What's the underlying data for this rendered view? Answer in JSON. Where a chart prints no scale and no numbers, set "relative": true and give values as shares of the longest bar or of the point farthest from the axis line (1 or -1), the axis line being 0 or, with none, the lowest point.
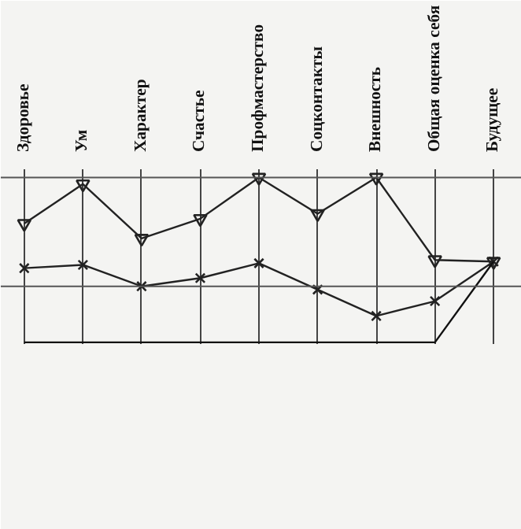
{
  "chart_data": {
    "type": "line",
    "relative": true,
    "categories": [
      "Здоровье",
      "Ум",
      "Характер",
      "Счастье",
      "Профмастерство",
      "Соцконтакты",
      "Внешность",
      "Общая оценка себя",
      "Будущее"
    ],
    "series": [
      {
        "color": "#222222",
        "marker": "triangle",
        "values": [
          0.72,
          0.96,
          0.63,
          0.75,
          1.0,
          0.78,
          1.0,
          0.5,
          0.49
        ]
      },
      {
        "color": "#222222",
        "marker": "cross",
        "values": [
          0.45,
          0.47,
          0.34,
          0.39,
          0.48,
          0.32,
          0.16,
          0.25,
          0.49
        ]
      },
      {
        "color": "#111111",
        "marker": "none",
        "values": [
          0,
          0,
          0,
          0,
          0,
          0,
          0,
          0,
          0.49
        ]
      }
    ],
    "ref_lines": [
      {
        "axis": "y",
        "value": 1.0,
        "color": "#555555"
      },
      {
        "axis": "y",
        "value": 0.34,
        "color": "#555555"
      }
    ],
    "grid": "x",
    "line_style": "solid"
  }
}
